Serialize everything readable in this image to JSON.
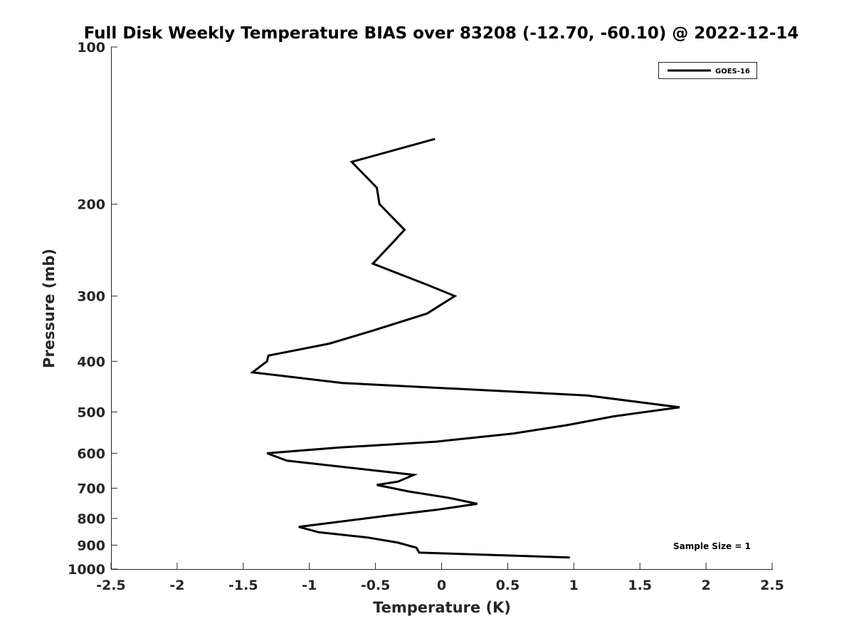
{
  "chart_data": {
    "type": "line",
    "title": "Full Disk Weekly Temperature BIAS over 83208 (-12.70, -60.10) @ 2022-12-14",
    "xlabel": "Temperature (K)",
    "ylabel": "Pressure (mb)",
    "xlim": [
      -2.5,
      2.5
    ],
    "ylim": [
      100,
      1000
    ],
    "y_scale": "log",
    "y_reversed": true,
    "grid": false,
    "legend_position": "top-right",
    "x_ticks": [
      -2.5,
      -2,
      -1.5,
      -1,
      -0.5,
      0,
      0.5,
      1,
      1.5,
      2,
      2.5
    ],
    "x_tick_labels": [
      "-2.5",
      "-2",
      "-1.5",
      "-1",
      "-0.5",
      "0",
      "0.5",
      "1",
      "1.5",
      "2",
      "2.5"
    ],
    "y_ticks": [
      100,
      200,
      300,
      400,
      500,
      600,
      700,
      800,
      900,
      1000
    ],
    "y_tick_labels": [
      "100",
      "200",
      "300",
      "400",
      "500",
      "600",
      "700",
      "800",
      "900",
      "1000"
    ],
    "series": [
      {
        "name": "GOES-16",
        "color": "#000000",
        "x": [
          -0.05,
          -0.68,
          -0.49,
          -0.47,
          -0.28,
          -0.39,
          -0.52,
          -0.1,
          0.1,
          -0.11,
          -0.53,
          -0.85,
          -1.31,
          -1.32,
          -1.43,
          -0.75,
          1.1,
          1.8,
          1.3,
          0.95,
          0.54,
          -0.04,
          -0.77,
          -1.32,
          -1.17,
          -0.21,
          -0.33,
          -0.49,
          -0.25,
          0.05,
          0.27,
          -0.04,
          -0.41,
          -1.08,
          -0.93,
          -0.56,
          -0.33,
          -0.19,
          -0.17,
          0.97
        ],
        "y": [
          150,
          166,
          186,
          200,
          224,
          240,
          260,
          286,
          300,
          324,
          350,
          370,
          390,
          400,
          420,
          440,
          465,
          490,
          510,
          530,
          550,
          570,
          585,
          600,
          620,
          660,
          680,
          690,
          710,
          730,
          750,
          770,
          790,
          830,
          850,
          870,
          890,
          910,
          930,
          950
        ]
      }
    ],
    "annotations": [
      "Sample Size = 1"
    ]
  }
}
